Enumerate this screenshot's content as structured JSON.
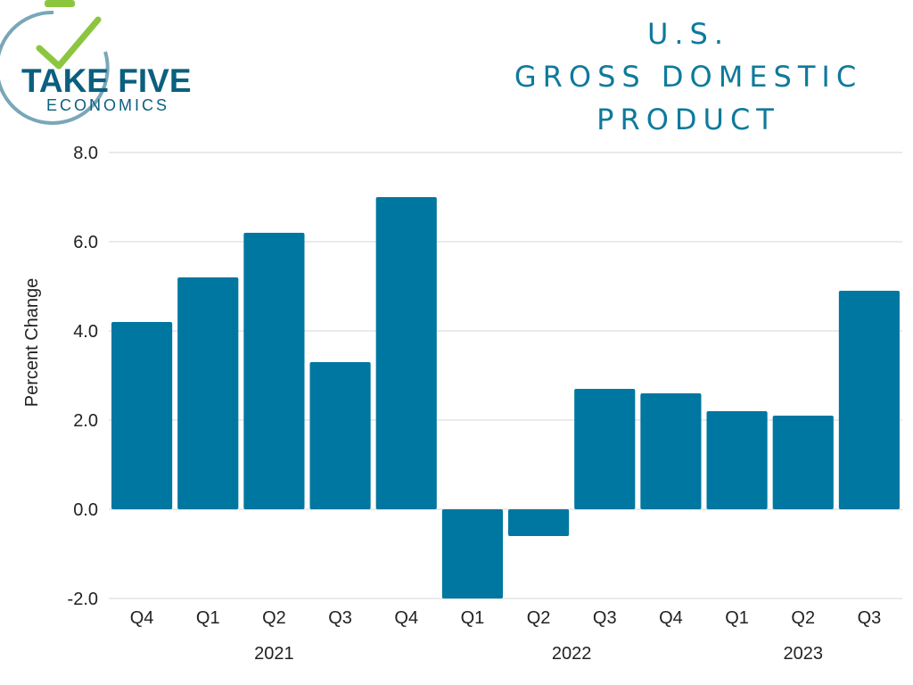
{
  "logo": {
    "line1": "TAKE FIVE",
    "line2": "ECONOMICS",
    "icon": "stopwatch-checkmark-icon"
  },
  "title_lines": [
    "U.S.",
    "GROSS DOMESTIC",
    "PRODUCT"
  ],
  "colors": {
    "bar": "#0077a0",
    "title": "#0e7a9c",
    "logo_dark": "#0b5f7f",
    "logo_green": "#8cc63f",
    "grid": "#d4d4d4"
  },
  "chart_data": {
    "type": "bar",
    "title": "U.S. GROSS DOMESTIC PRODUCT",
    "ylabel": "Percent Change",
    "xlabel": "",
    "ylim": [
      -2.0,
      8.0
    ],
    "yticks": [
      "8.0",
      "6.0",
      "4.0",
      "2.0",
      "0.0",
      "-2.0"
    ],
    "ytick_values": [
      8,
      6,
      4,
      2,
      0,
      -2
    ],
    "grid": true,
    "categories": [
      "Q4",
      "Q1",
      "Q2",
      "Q3",
      "Q4",
      "Q1",
      "Q2",
      "Q3",
      "Q4",
      "Q1",
      "Q2",
      "Q3"
    ],
    "years": [
      {
        "label": "2021",
        "first": 0,
        "last": 4
      },
      {
        "label": "2022",
        "first": 5,
        "last": 8
      },
      {
        "label": "2023",
        "first": 9,
        "last": 11
      }
    ],
    "values": [
      4.2,
      5.2,
      6.2,
      3.3,
      7.0,
      -2.0,
      -0.6,
      2.7,
      2.6,
      2.2,
      2.1,
      4.9
    ]
  }
}
